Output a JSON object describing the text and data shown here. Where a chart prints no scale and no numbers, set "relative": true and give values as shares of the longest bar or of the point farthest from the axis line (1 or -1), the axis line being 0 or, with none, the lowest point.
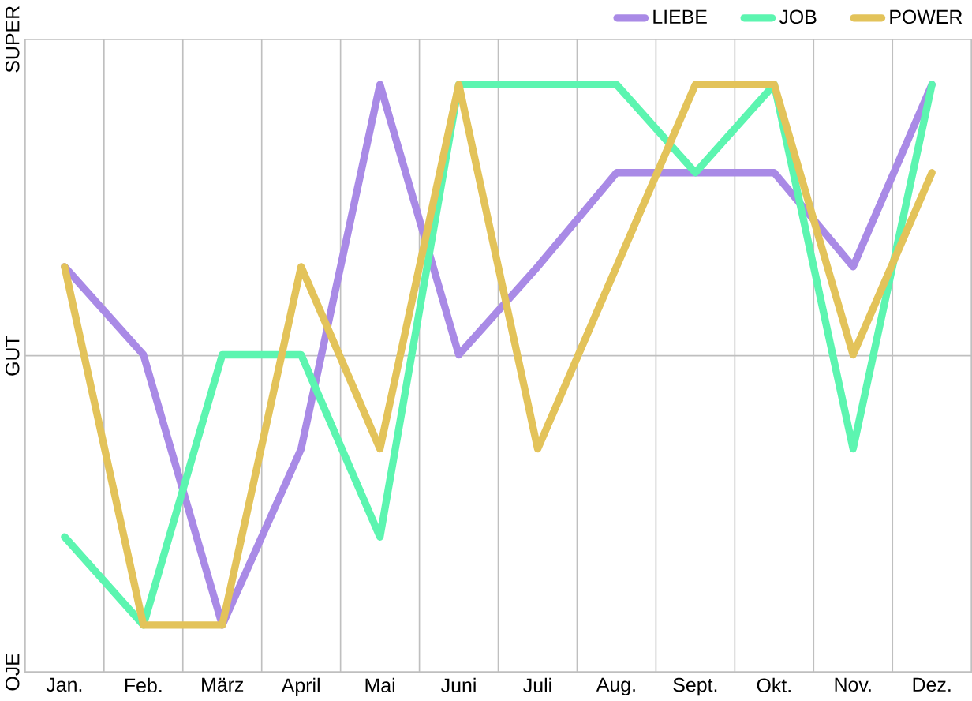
{
  "chart_data": {
    "type": "line",
    "relative": true,
    "categories": [
      "Jan.",
      "Feb.",
      "März",
      "April",
      "Mai",
      "Juni",
      "Juli",
      "Aug.",
      "Sept.",
      "Okt.",
      "Nov.",
      "Dez."
    ],
    "series": [
      {
        "name": "LIEBE",
        "color": "#a98ae6",
        "values": [
          0.69,
          0.54,
          0.08,
          0.38,
          1,
          0.54,
          0.69,
          0.85,
          0.85,
          0.85,
          0.69,
          1
        ]
      },
      {
        "name": "JOB",
        "color": "#5cf5b0",
        "values": [
          0.23,
          0.08,
          0.54,
          0.54,
          0.23,
          1,
          1,
          1,
          0.85,
          1,
          0.38,
          1
        ]
      },
      {
        "name": "POWER",
        "color": "#e3c35a",
        "values": [
          0.69,
          0.08,
          0.08,
          0.69,
          0.38,
          1,
          0.38,
          0.69,
          1,
          1,
          0.54,
          0.85
        ]
      }
    ],
    "annotations": [
      "OJE",
      "GUT",
      "SUPER"
    ],
    "grid": true,
    "legend": "top right",
    "marker": "none",
    "line_style": "solid"
  }
}
